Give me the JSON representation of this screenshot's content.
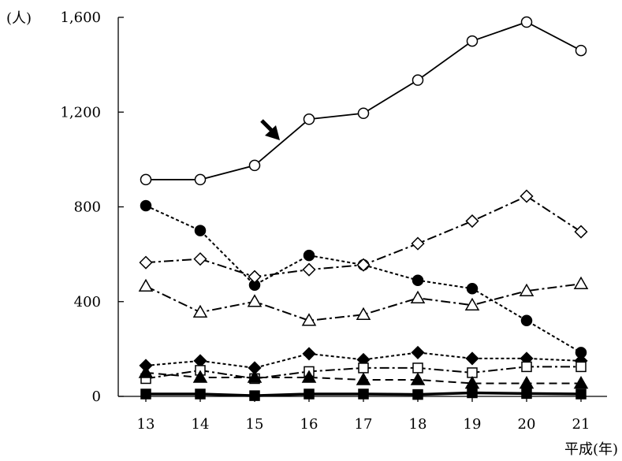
{
  "chart_data": {
    "type": "line",
    "y_unit_label": "(人)",
    "x_unit_label": "平成(年)",
    "categories": [
      "13",
      "14",
      "15",
      "16",
      "17",
      "18",
      "19",
      "20",
      "21"
    ],
    "ylim": [
      0,
      1600
    ],
    "y_ticks": [
      0,
      400,
      800,
      1200,
      1600
    ],
    "y_tick_labels": [
      "0",
      "400",
      "800",
      "1,200",
      "1,600"
    ],
    "grid": false,
    "legend": "none",
    "annotation": "arrow pointing to the top series",
    "series": [
      {
        "marker": "circle-open",
        "line": "solid",
        "values": [
          915,
          915,
          975,
          1170,
          1195,
          1335,
          1500,
          1580,
          1460
        ]
      },
      {
        "marker": "circle-filled",
        "line": "dotted",
        "values": [
          805,
          700,
          470,
          595,
          555,
          490,
          455,
          320,
          185
        ]
      },
      {
        "marker": "diamond-open",
        "line": "dashdot",
        "values": [
          565,
          580,
          505,
          535,
          555,
          645,
          740,
          845,
          695
        ]
      },
      {
        "marker": "triangle-open",
        "line": "dashdot",
        "values": [
          465,
          355,
          400,
          320,
          345,
          415,
          385,
          445,
          475
        ]
      },
      {
        "marker": "diamond-filled",
        "line": "dotted",
        "values": [
          130,
          150,
          120,
          180,
          155,
          185,
          160,
          160,
          150
        ]
      },
      {
        "marker": "square-open",
        "line": "dashdot",
        "values": [
          75,
          110,
          75,
          105,
          120,
          120,
          100,
          125,
          125
        ]
      },
      {
        "marker": "triangle-filled",
        "line": "dashed",
        "values": [
          100,
          80,
          80,
          80,
          70,
          70,
          55,
          55,
          55
        ]
      },
      {
        "marker": "square-filled",
        "line": "solid",
        "values": [
          10,
          10,
          3,
          10,
          10,
          8,
          15,
          12,
          10
        ]
      }
    ]
  }
}
